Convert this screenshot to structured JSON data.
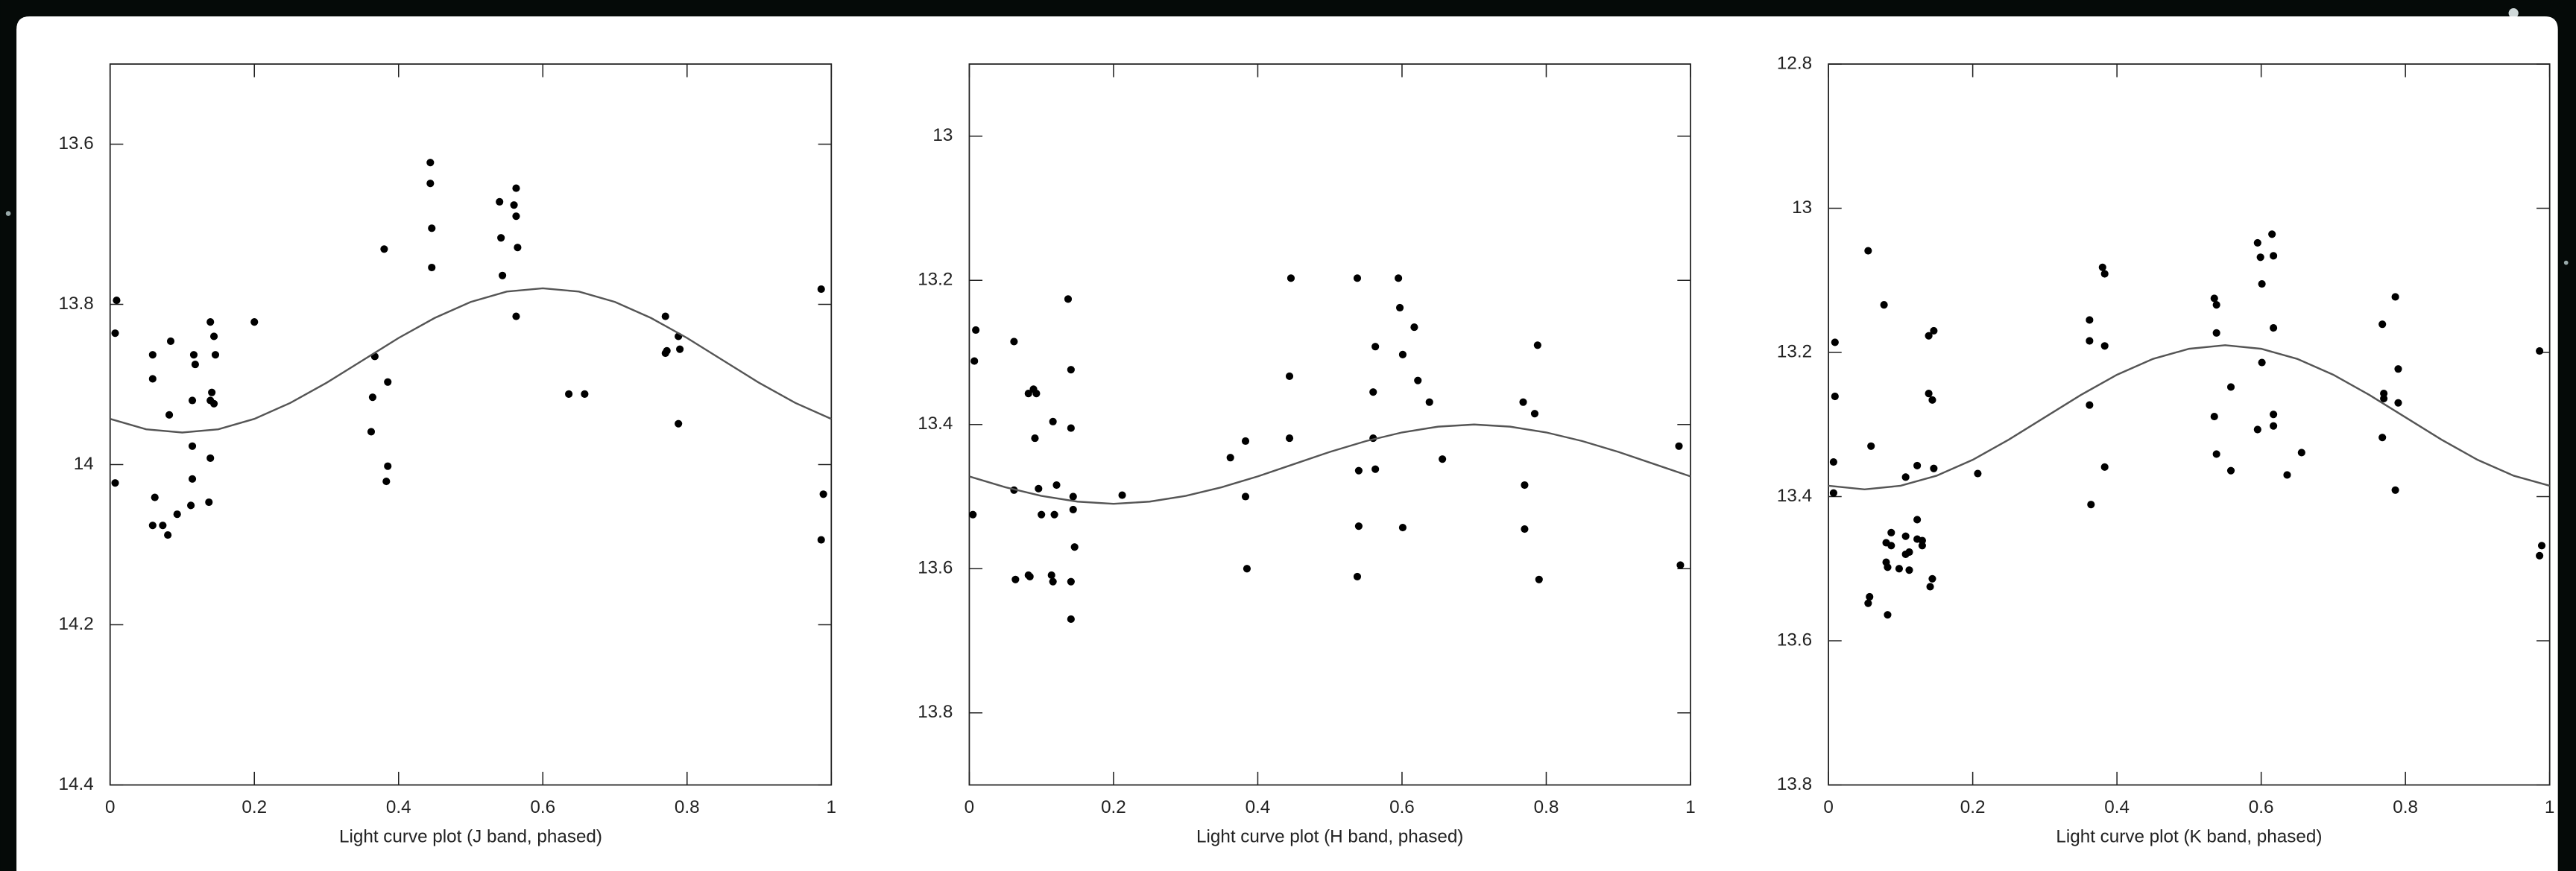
{
  "chart_data": [
    {
      "type": "scatter",
      "xlabel": "Light curve plot (J band, phased)",
      "xlim": [
        0,
        1
      ],
      "xticks": [
        0,
        0.2,
        0.4,
        0.6,
        0.8,
        1
      ],
      "ylim": [
        14.4,
        13.5
      ],
      "yticks": [
        13.6,
        13.8,
        14,
        14.2,
        14.4
      ],
      "series": [
        {
          "style": "points",
          "color": "#000000",
          "x": [
            0.009,
            0.007,
            0.007,
            0.059,
            0.059,
            0.062,
            0.059,
            0.073,
            0.08,
            0.082,
            0.084,
            0.093,
            0.112,
            0.114,
            0.114,
            0.116,
            0.118,
            0.114,
            0.137,
            0.139,
            0.139,
            0.146,
            0.141,
            0.139,
            0.144,
            0.144,
            0.2,
            0.367,
            0.364,
            0.362,
            0.385,
            0.383,
            0.385,
            0.38,
            0.444,
            0.444,
            0.446,
            0.446,
            0.54,
            0.542,
            0.544,
            0.56,
            0.563,
            0.563,
            0.565,
            0.563,
            0.636,
            0.658,
            0.77,
            0.77,
            0.772,
            0.788,
            0.79,
            0.788,
            0.986,
            0.989,
            0.986
          ],
          "values": [
            13.795,
            13.836,
            14.023,
            13.863,
            13.893,
            14.041,
            14.076,
            14.076,
            14.088,
            13.938,
            13.846,
            14.062,
            14.051,
            13.977,
            14.018,
            13.863,
            13.875,
            13.92,
            14.047,
            13.992,
            13.822,
            13.863,
            13.91,
            13.92,
            13.84,
            13.924,
            13.822,
            13.865,
            13.916,
            13.959,
            14.002,
            14.021,
            13.897,
            13.731,
            13.623,
            13.649,
            13.705,
            13.754,
            13.672,
            13.717,
            13.764,
            13.676,
            13.655,
            13.69,
            13.729,
            13.815,
            13.912,
            13.912,
            13.815,
            13.861,
            13.858,
            13.84,
            13.856,
            13.949,
            13.781,
            14.037,
            14.094
          ]
        },
        {
          "style": "line",
          "color": "#555555",
          "x": [
            0,
            0.05,
            0.1,
            0.15,
            0.2,
            0.25,
            0.3,
            0.35,
            0.4,
            0.45,
            0.5,
            0.55,
            0.6,
            0.65,
            0.7,
            0.75,
            0.8,
            0.85,
            0.9,
            0.95,
            1
          ],
          "values": [
            13.943,
            13.956,
            13.96,
            13.956,
            13.943,
            13.923,
            13.898,
            13.87,
            13.842,
            13.817,
            13.797,
            13.784,
            13.78,
            13.784,
            13.797,
            13.817,
            13.842,
            13.87,
            13.898,
            13.923,
            13.943
          ]
        }
      ]
    },
    {
      "type": "scatter",
      "xlabel": "Light curve plot (H band, phased)",
      "xlim": [
        0,
        1
      ],
      "xticks": [
        0,
        0.2,
        0.4,
        0.6,
        0.8,
        1
      ],
      "ylim": [
        13.9,
        12.9
      ],
      "yticks": [
        13,
        13.2,
        13.4,
        13.6,
        13.8
      ],
      "series": [
        {
          "style": "points",
          "color": "#000000",
          "x": [
            0.009,
            0.007,
            0.005,
            0.062,
            0.062,
            0.064,
            0.082,
            0.082,
            0.084,
            0.089,
            0.091,
            0.093,
            0.096,
            0.1,
            0.116,
            0.114,
            0.116,
            0.118,
            0.121,
            0.137,
            0.141,
            0.141,
            0.144,
            0.144,
            0.141,
            0.141,
            0.146,
            0.212,
            0.362,
            0.383,
            0.383,
            0.385,
            0.446,
            0.444,
            0.444,
            0.538,
            0.54,
            0.54,
            0.538,
            0.563,
            0.56,
            0.56,
            0.563,
            0.595,
            0.597,
            0.601,
            0.601,
            0.617,
            0.622,
            0.638,
            0.656,
            0.768,
            0.77,
            0.77,
            0.784,
            0.788,
            0.79,
            0.984,
            0.986
          ],
          "values": [
            13.269,
            13.312,
            13.525,
            13.285,
            13.491,
            13.615,
            13.609,
            13.357,
            13.611,
            13.351,
            13.419,
            13.357,
            13.489,
            13.525,
            13.618,
            13.609,
            13.396,
            13.525,
            13.484,
            13.226,
            13.324,
            13.405,
            13.5,
            13.518,
            13.618,
            13.67,
            13.57,
            13.498,
            13.446,
            13.423,
            13.5,
            13.6,
            13.197,
            13.333,
            13.419,
            13.197,
            13.464,
            13.541,
            13.611,
            13.462,
            13.419,
            13.355,
            13.292,
            13.197,
            13.238,
            13.303,
            13.543,
            13.265,
            13.339,
            13.369,
            13.448,
            13.369,
            13.484,
            13.545,
            13.385,
            13.29,
            13.615,
            13.43,
            13.595
          ]
        },
        {
          "style": "line",
          "color": "#555555",
          "x": [
            0,
            0.05,
            0.1,
            0.15,
            0.2,
            0.25,
            0.3,
            0.35,
            0.4,
            0.45,
            0.5,
            0.55,
            0.6,
            0.65,
            0.7,
            0.75,
            0.8,
            0.85,
            0.9,
            0.95,
            1
          ],
          "values": [
            13.472,
            13.487,
            13.499,
            13.507,
            13.51,
            13.507,
            13.499,
            13.487,
            13.472,
            13.455,
            13.438,
            13.423,
            13.411,
            13.403,
            13.4,
            13.403,
            13.411,
            13.423,
            13.438,
            13.455,
            13.472
          ]
        }
      ]
    },
    {
      "type": "scatter",
      "xlabel": "Light curve plot (K band, phased)",
      "xlim": [
        0,
        1
      ],
      "xticks": [
        0,
        0.2,
        0.4,
        0.6,
        0.8,
        1
      ],
      "ylim": [
        13.8,
        12.8
      ],
      "yticks": [
        12.8,
        13,
        13.2,
        13.4,
        13.6,
        13.8
      ],
      "series": [
        {
          "style": "points",
          "color": "#000000",
          "x": [
            0.009,
            0.009,
            0.007,
            0.007,
            0.055,
            0.059,
            0.057,
            0.055,
            0.077,
            0.08,
            0.08,
            0.082,
            0.082,
            0.087,
            0.087,
            0.098,
            0.107,
            0.107,
            0.107,
            0.112,
            0.112,
            0.123,
            0.123,
            0.123,
            0.13,
            0.13,
            0.139,
            0.146,
            0.139,
            0.144,
            0.146,
            0.141,
            0.144,
            0.207,
            0.362,
            0.362,
            0.362,
            0.364,
            0.38,
            0.383,
            0.383,
            0.383,
            0.535,
            0.538,
            0.538,
            0.535,
            0.538,
            0.558,
            0.558,
            0.595,
            0.599,
            0.601,
            0.601,
            0.595,
            0.615,
            0.617,
            0.617,
            0.617,
            0.617,
            0.636,
            0.656,
            0.768,
            0.77,
            0.768,
            0.77,
            0.786,
            0.79,
            0.79,
            0.786,
            0.986,
            0.986,
            0.989
          ],
          "values": [
            13.186,
            13.261,
            13.395,
            13.352,
            13.059,
            13.33,
            13.539,
            13.548,
            13.134,
            13.464,
            13.491,
            13.564,
            13.498,
            13.468,
            13.45,
            13.5,
            13.373,
            13.48,
            13.455,
            13.477,
            13.502,
            13.432,
            13.459,
            13.357,
            13.468,
            13.461,
            13.177,
            13.17,
            13.257,
            13.266,
            13.361,
            13.525,
            13.514,
            13.368,
            13.155,
            13.184,
            13.273,
            13.411,
            13.082,
            13.091,
            13.191,
            13.359,
            13.125,
            13.134,
            13.173,
            13.289,
            13.341,
            13.248,
            13.364,
            13.048,
            13.068,
            13.105,
            13.214,
            13.307,
            13.036,
            13.066,
            13.166,
            13.286,
            13.302,
            13.37,
            13.339,
            13.161,
            13.264,
            13.318,
            13.257,
            13.123,
            13.223,
            13.27,
            13.391,
            13.198,
            13.482,
            13.468
          ]
        },
        {
          "style": "line",
          "color": "#555555",
          "x": [
            0,
            0.05,
            0.1,
            0.15,
            0.2,
            0.25,
            0.3,
            0.35,
            0.4,
            0.45,
            0.5,
            0.55,
            0.6,
            0.65,
            0.7,
            0.75,
            0.8,
            0.85,
            0.9,
            0.95,
            1
          ],
          "values": [
            13.385,
            13.39,
            13.385,
            13.371,
            13.349,
            13.321,
            13.29,
            13.259,
            13.231,
            13.209,
            13.195,
            13.19,
            13.195,
            13.209,
            13.231,
            13.259,
            13.29,
            13.321,
            13.349,
            13.371,
            13.385
          ]
        }
      ]
    }
  ]
}
